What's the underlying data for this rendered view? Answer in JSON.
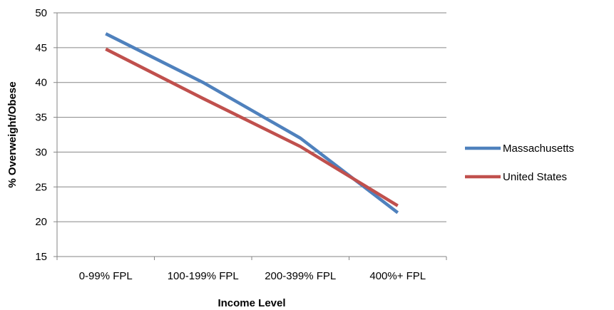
{
  "chart_data": {
    "type": "line",
    "title": "",
    "xlabel": "Income Level",
    "ylabel": "% Overweight/Obese",
    "categories": [
      "0-99% FPL",
      "100-199% FPL",
      "200-399% FPL",
      "400%+ FPL"
    ],
    "ylim": [
      15,
      50
    ],
    "yticks": [
      15,
      20,
      25,
      30,
      35,
      40,
      45,
      50
    ],
    "grid": true,
    "legend_position": "right",
    "series": [
      {
        "name": "Massachusetts",
        "color": "#4F81BD",
        "values": [
          47.0,
          40.0,
          32.0,
          21.3
        ]
      },
      {
        "name": "United States",
        "color": "#C0504D",
        "values": [
          44.8,
          37.7,
          30.8,
          22.3
        ]
      }
    ]
  }
}
